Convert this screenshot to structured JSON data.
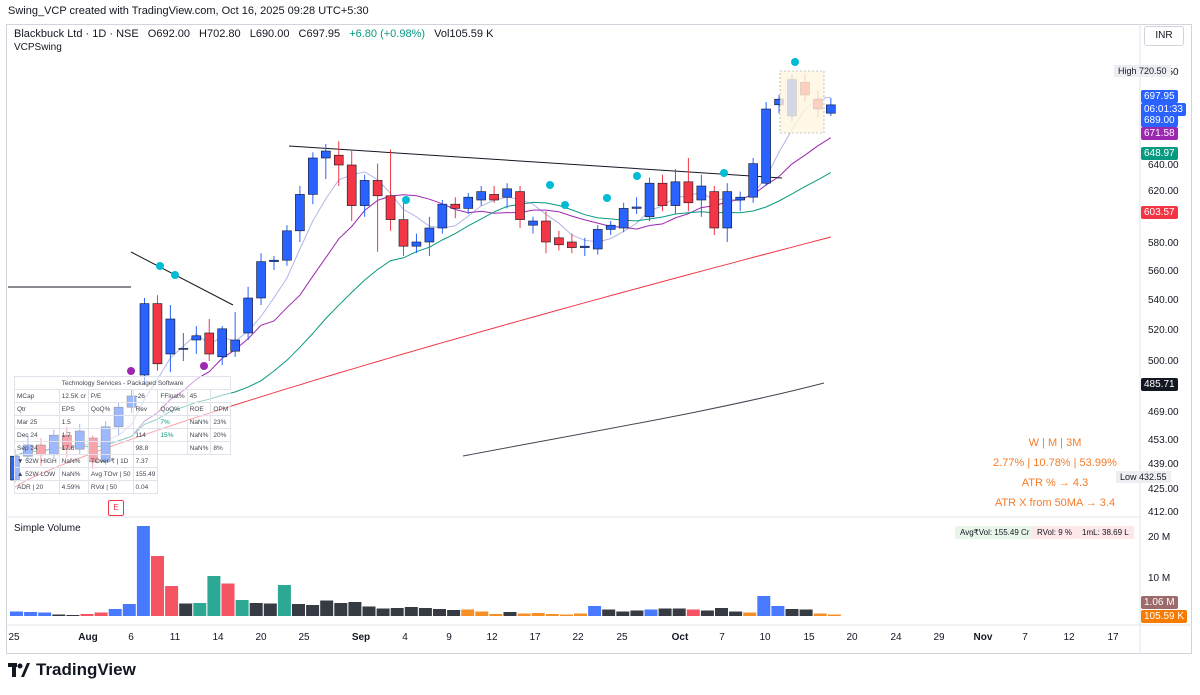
{
  "header": {
    "credit": "Swing_VCP created with TradingView.com, Oct 16, 2025 09:28 UTC+5:30"
  },
  "symbol": {
    "name": "Blackbuck Ltd · 1D · NSE",
    "open": "O692.00",
    "high": "H702.80",
    "low": "L690.00",
    "close": "C697.95",
    "change": "+6.80 (+0.98%)",
    "volume": "Vol105.59 K",
    "indicator": "VCPSwing"
  },
  "currency": "INR",
  "price_axis": {
    "ticks": [
      "720.50",
      "689.00",
      "671.58",
      "648.97",
      "640.00",
      "620.00",
      "603.57",
      "580.00",
      "560.00",
      "540.00",
      "520.00",
      "500.00",
      "485.71",
      "469.00",
      "453.00",
      "439.00",
      "432.55",
      "425.00",
      "412.00"
    ],
    "high_label": "High",
    "low_label": "Low"
  },
  "price_tags": [
    {
      "text": "697.95",
      "color": "#2962ff"
    },
    {
      "text": "06:01:33",
      "color": "#2962ff"
    },
    {
      "text": "689.00",
      "color": "#2962ff"
    },
    {
      "text": "671.58",
      "color": "#9c27b0"
    },
    {
      "text": "648.97",
      "color": "#089981"
    },
    {
      "text": "603.57",
      "color": "#f23645"
    },
    {
      "text": "485.71",
      "color": "#131722"
    },
    {
      "text": "720.50",
      "color": "#eceef2"
    },
    {
      "text": "432.55",
      "color": "#eceef2"
    }
  ],
  "volume": {
    "title": "Simple Volume",
    "badges": [
      "Avg₹Vol: 155.49 Cr",
      "RVol: 9 %",
      "1mL: 38.69 L"
    ],
    "axis_ticks": [
      "20 M",
      "10 M"
    ],
    "tags": [
      "1.06 M",
      "105.59 K"
    ]
  },
  "time_axis": [
    "25",
    "Aug",
    "6",
    "11",
    "14",
    "20",
    "25",
    "Sep",
    "4",
    "9",
    "12",
    "17",
    "22",
    "25",
    "Oct",
    "7",
    "10",
    "15",
    "20",
    "24",
    "29",
    "Nov",
    "7",
    "12",
    "17"
  ],
  "fundamentals": {
    "sector": "Technology Services - Packaged Software",
    "rows": [
      [
        "MCap",
        "12.5K cr",
        "P/E",
        "-26",
        "FFloat%",
        "45"
      ],
      [
        "Qtr",
        "EPS",
        "QoQ%",
        "Rev",
        "QoQ%",
        "ROE",
        "OPM"
      ],
      [
        "Mar 25",
        "1.5",
        "",
        "",
        "7%",
        "NaN%",
        "23%"
      ],
      [
        "Dec 24",
        "1.7",
        "",
        "114",
        "15%",
        "NaN%",
        "20%"
      ],
      [
        "Sep 24",
        "17.6",
        "",
        "98.8",
        "",
        "NaN%",
        "8%"
      ],
      [
        "▼ 52W HIGH",
        "NaN%",
        "TOver ₹ | 1D",
        "7.37"
      ],
      [
        "▲ 52W LOW",
        "NaN%",
        "Avg TOvr | 50",
        "155.49"
      ],
      [
        "ADR | 20",
        "4.59%",
        "RVol | 50",
        "0.04"
      ]
    ]
  },
  "performance": {
    "periods": "W   |   M   |   3M",
    "values": "2.77% | 10.78% | 53.99%",
    "atr": "ATR % → 4.3",
    "atr_x": "ATR X from 50MA → 3.4"
  },
  "earnings_marker": "E",
  "branding": "TradingView",
  "chart_data": {
    "type": "candlestick",
    "title": "Blackbuck Ltd · 1D · NSE",
    "y_range": [
      405,
      730
    ],
    "candles": [
      {
        "o": 430,
        "h": 452,
        "l": 428,
        "c": 447
      },
      {
        "o": 447,
        "h": 462,
        "l": 443,
        "c": 455
      },
      {
        "o": 455,
        "h": 460,
        "l": 440,
        "c": 448
      },
      {
        "o": 448,
        "h": 466,
        "l": 445,
        "c": 462
      },
      {
        "o": 462,
        "h": 468,
        "l": 446,
        "c": 452
      },
      {
        "o": 452,
        "h": 470,
        "l": 448,
        "c": 465
      },
      {
        "o": 460,
        "h": 462,
        "l": 438,
        "c": 443
      },
      {
        "o": 443,
        "h": 472,
        "l": 441,
        "c": 468
      },
      {
        "o": 468,
        "h": 485,
        "l": 462,
        "c": 482
      },
      {
        "o": 482,
        "h": 495,
        "l": 478,
        "c": 490
      },
      {
        "o": 505,
        "h": 560,
        "l": 498,
        "c": 556
      },
      {
        "o": 556,
        "h": 562,
        "l": 508,
        "c": 513
      },
      {
        "o": 520,
        "h": 555,
        "l": 507,
        "c": 545
      },
      {
        "o": 524,
        "h": 535,
        "l": 515,
        "c": 524
      },
      {
        "o": 530,
        "h": 540,
        "l": 520,
        "c": 533
      },
      {
        "o": 535,
        "h": 545,
        "l": 515,
        "c": 520
      },
      {
        "o": 518,
        "h": 540,
        "l": 512,
        "c": 538
      },
      {
        "o": 522,
        "h": 550,
        "l": 518,
        "c": 530
      },
      {
        "o": 535,
        "h": 568,
        "l": 530,
        "c": 560
      },
      {
        "o": 560,
        "h": 592,
        "l": 555,
        "c": 586
      },
      {
        "o": 586,
        "h": 590,
        "l": 580,
        "c": 587
      },
      {
        "o": 587,
        "h": 612,
        "l": 583,
        "c": 608
      },
      {
        "o": 608,
        "h": 640,
        "l": 600,
        "c": 634
      },
      {
        "o": 634,
        "h": 664,
        "l": 627,
        "c": 660
      },
      {
        "o": 660,
        "h": 670,
        "l": 645,
        "c": 665
      },
      {
        "o": 662,
        "h": 672,
        "l": 640,
        "c": 655
      },
      {
        "o": 655,
        "h": 665,
        "l": 615,
        "c": 626
      },
      {
        "o": 626,
        "h": 648,
        "l": 618,
        "c": 644
      },
      {
        "o": 644,
        "h": 656,
        "l": 593,
        "c": 633
      },
      {
        "o": 633,
        "h": 666,
        "l": 608,
        "c": 616
      },
      {
        "o": 616,
        "h": 628,
        "l": 590,
        "c": 597
      },
      {
        "o": 597,
        "h": 606,
        "l": 592,
        "c": 600
      },
      {
        "o": 600,
        "h": 618,
        "l": 590,
        "c": 610
      },
      {
        "o": 610,
        "h": 630,
        "l": 606,
        "c": 627
      },
      {
        "o": 627,
        "h": 632,
        "l": 617,
        "c": 624
      },
      {
        "o": 624,
        "h": 635,
        "l": 620,
        "c": 632
      },
      {
        "o": 630,
        "h": 640,
        "l": 626,
        "c": 636
      },
      {
        "o": 634,
        "h": 640,
        "l": 628,
        "c": 630
      },
      {
        "o": 632,
        "h": 642,
        "l": 624,
        "c": 638
      },
      {
        "o": 636,
        "h": 640,
        "l": 610,
        "c": 616
      },
      {
        "o": 612,
        "h": 618,
        "l": 606,
        "c": 615
      },
      {
        "o": 615,
        "h": 622,
        "l": 592,
        "c": 600
      },
      {
        "o": 603,
        "h": 608,
        "l": 594,
        "c": 598
      },
      {
        "o": 600,
        "h": 606,
        "l": 592,
        "c": 596
      },
      {
        "o": 596,
        "h": 603,
        "l": 590,
        "c": 597
      },
      {
        "o": 595,
        "h": 612,
        "l": 591,
        "c": 609
      },
      {
        "o": 609,
        "h": 615,
        "l": 605,
        "c": 612
      },
      {
        "o": 610,
        "h": 628,
        "l": 607,
        "c": 624
      },
      {
        "o": 624,
        "h": 632,
        "l": 620,
        "c": 625
      },
      {
        "o": 618,
        "h": 646,
        "l": 615,
        "c": 642
      },
      {
        "o": 642,
        "h": 648,
        "l": 622,
        "c": 626
      },
      {
        "o": 626,
        "h": 652,
        "l": 620,
        "c": 643
      },
      {
        "o": 643,
        "h": 660,
        "l": 622,
        "c": 628
      },
      {
        "o": 630,
        "h": 648,
        "l": 618,
        "c": 640
      },
      {
        "o": 636,
        "h": 640,
        "l": 605,
        "c": 610
      },
      {
        "o": 610,
        "h": 642,
        "l": 600,
        "c": 636
      },
      {
        "o": 630,
        "h": 636,
        "l": 622,
        "c": 632
      },
      {
        "o": 632,
        "h": 660,
        "l": 628,
        "c": 656
      },
      {
        "o": 642,
        "h": 700,
        "l": 640,
        "c": 695
      },
      {
        "o": 698,
        "h": 705,
        "l": 692,
        "c": 702
      },
      {
        "o": 690,
        "h": 720,
        "l": 686,
        "c": 716
      },
      {
        "o": 714,
        "h": 720.5,
        "l": 700,
        "c": 705
      },
      {
        "o": 702,
        "h": 708,
        "l": 689,
        "c": 695
      },
      {
        "o": 692,
        "h": 702.8,
        "l": 690,
        "c": 697.95
      }
    ],
    "ma_levels": {
      "ma10": 671.58,
      "ma20": 648.97,
      "ma50": 603.57,
      "ma200": 485.71
    }
  }
}
